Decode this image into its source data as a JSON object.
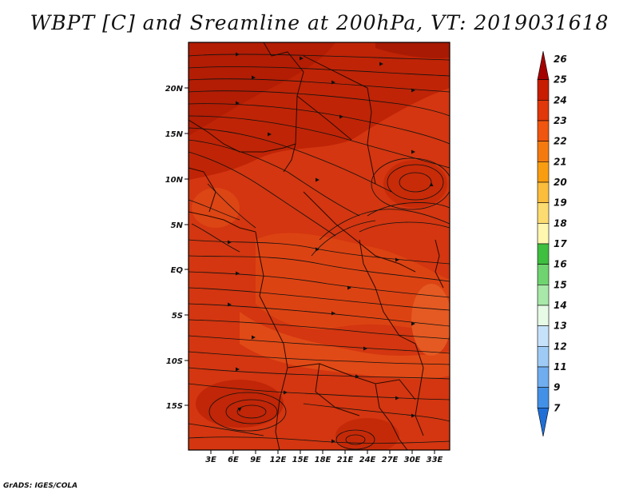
{
  "title": "WBPT [C] and Sreamline at 200hPa, VT: 2019031618",
  "footer": "GrADS: IGES/COLA",
  "lat_labels": [
    "20N",
    "15N",
    "10N",
    "5N",
    "EQ",
    "5S",
    "10S",
    "15S"
  ],
  "lon_labels": [
    "3E",
    "6E",
    "9E",
    "12E",
    "15E",
    "18E",
    "21E",
    "24E",
    "27E",
    "30E",
    "33E"
  ],
  "colorbar": {
    "labels": [
      "26",
      "25",
      "24",
      "23",
      "22",
      "21",
      "20",
      "19",
      "18",
      "17",
      "16",
      "15",
      "14",
      "13",
      "12",
      "11",
      "9",
      "7"
    ],
    "colors": [
      "#a50000",
      "#c81d00",
      "#e0380a",
      "#f0560f",
      "#f47a10",
      "#f99d10",
      "#fbbd3c",
      "#fcdb70",
      "#fdf7b0",
      "#3fbf3f",
      "#6fd46f",
      "#a8e8a8",
      "#e6fae6",
      "#c6e2fb",
      "#9ecbf6",
      "#6fadef",
      "#4391e6",
      "#1f6fd6"
    ]
  },
  "map": {
    "field": "Wet-bulb potential temperature (WBPT)",
    "level": "200hPa",
    "dominant_value_range": "23-25",
    "colors": {
      "base": "#d83a10",
      "dark": "#b51e05",
      "mid": "#cf2e09",
      "light": "#e8501b"
    }
  }
}
